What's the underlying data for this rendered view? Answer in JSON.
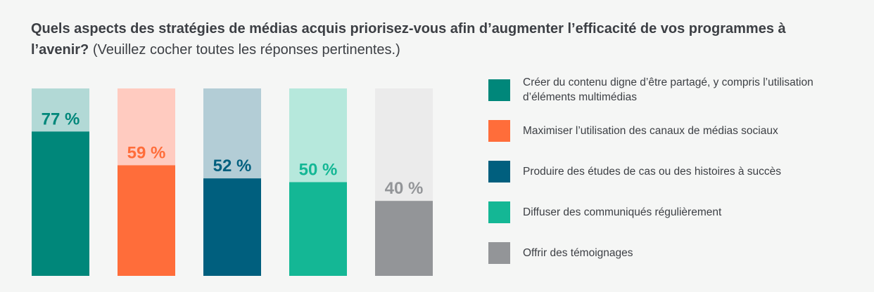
{
  "title": {
    "question": "Quels aspects des stratégies de médias acquis priorisez-vous afin d’augmenter l’efficacité de vos programmes à l’avenir?",
    "hint": "(Veuillez cocher toutes les réponses pertinentes.)"
  },
  "chart_data": {
    "type": "bar",
    "ylim": [
      0,
      100
    ],
    "grid": false,
    "legend_placement": "right",
    "categories": [
      "Créer du contenu digne d’être partagé, y compris l’utilisation d’éléments multimédias",
      "Maximiser l’utilisation des canaux de médias sociaux",
      "Produire des études de cas ou des histoires à succès",
      "Diffuser des communiqués régulièrement",
      "Offrir des témoignages"
    ],
    "values": [
      77,
      59,
      52,
      50,
      40
    ],
    "data_labels": [
      "77 %",
      "59 %",
      "52 %",
      "50 %",
      "40 %"
    ],
    "colors": [
      "#00877a",
      "#ff6d3a",
      "#005f7e",
      "#14b795",
      "#939598"
    ],
    "track_colors": [
      "#b2d9d6",
      "#ffcbc0",
      "#b3cdd6",
      "#b6e8dc",
      "#ebebeb"
    ]
  }
}
